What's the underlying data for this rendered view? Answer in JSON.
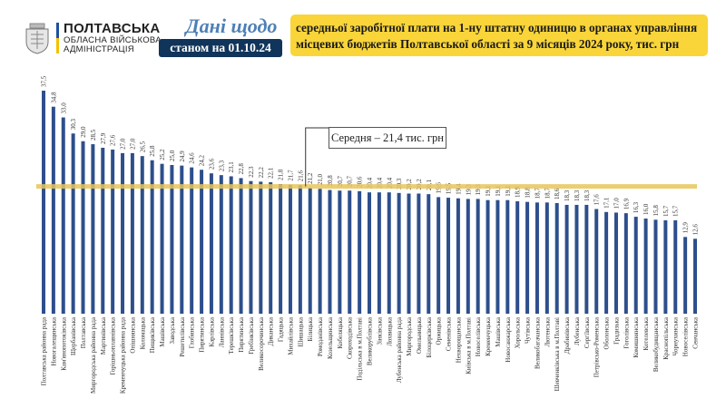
{
  "header": {
    "logo_line1": "ПОЛТАВСЬКА",
    "logo_line2": "ОБЛАСНА ВІЙСЬКОВА",
    "logo_line3": "АДМІНІСТРАЦІЯ",
    "title": "Дані щодо",
    "date": "станом на 01.10.24",
    "subtitle": "середньої заробітної плати на 1-ну штатну одиницю в органах управління місцевих бюджетів Полтавської області за 9 місяців 2024 року, тис. грн"
  },
  "colors": {
    "bar": "#2d4f8c",
    "average_line": "#e8c45a",
    "subtitle_bg": "#f9d53a",
    "date_bg": "#10345a",
    "title": "#4e7fb6"
  },
  "chart_data": {
    "type": "bar",
    "title": "середньої заробітної плати на 1-ну штатну одиницю в органах управління місцевих бюджетів Полтавської області за 9 місяців 2024 року, тис. грн",
    "xlabel": "",
    "ylabel": "",
    "ylim": [
      0,
      38
    ],
    "grid": false,
    "average": {
      "value": 21.4,
      "label": "Середня – 21,4 тис. грн"
    },
    "categories": [
      "Полтавська районна рада",
      "Новогалещинська",
      "Кам'янопотоківська",
      "Щербанівська",
      "Полтавська",
      "Миргородська районна рада",
      "Мартинівська",
      "Горішньоплавнівська",
      "Кременчуцька районна рада",
      "Опішнянська",
      "Коломацька",
      "Пищиківська",
      "Машівська",
      "Заводська",
      "Решетилівська",
      "Глобинська",
      "Пирятинська",
      "Карлівська",
      "Ланнівська",
      "Терешківська",
      "Пирятинська",
      "Гребінківська",
      "Великосорочинська",
      "Диканська",
      "Гадяцька",
      "Михайлівська",
      "Шишацька",
      "Білицька",
      "Ромоданівська",
      "Козельщинська",
      "Кобеляцька",
      "Скороходівська",
      "Подільська в м.Полтаві",
      "Великорублівська",
      "Зінківська",
      "Лохвицька",
      "Лубенська районна рада",
      "Миргородська",
      "Омельницька",
      "Білоцерківська",
      "Оржицька",
      "Семенівська",
      "Нехворощанська",
      "Київська в м.Полтаві",
      "Новоселівська",
      "Кременчуцька",
      "Машівська",
      "Новосанжарська",
      "Хорольська",
      "Чутівська",
      "Великобагачанська",
      "Лютенська",
      "Шевченківська в м.Полтаві",
      "Драбинівська",
      "Лубенська",
      "Сергіївська",
      "Петрівсько-Роменська",
      "Оболонська",
      "Градизька",
      "Гоголівська",
      "Комишнянська",
      "Котелевська",
      "Великобудищанська",
      "Краснопільська",
      "Чорнухинська",
      "Новоселівська",
      "Сенчанська"
    ],
    "values": [
      37.5,
      34.8,
      33.0,
      30.3,
      29.0,
      28.5,
      27.9,
      27.6,
      27.0,
      27.0,
      26.5,
      25.8,
      25.2,
      25.0,
      24.9,
      24.6,
      24.2,
      23.6,
      23.3,
      23.1,
      22.8,
      22.3,
      22.2,
      22.1,
      21.8,
      21.7,
      21.6,
      21.2,
      21.0,
      20.8,
      20.7,
      20.7,
      20.6,
      20.4,
      20.4,
      20.4,
      20.3,
      20.2,
      20.2,
      20.1,
      19.6,
      19.5,
      19.4,
      19.3,
      19.3,
      19.1,
      19.1,
      19.1,
      18.9,
      18.8,
      18.7,
      18.7,
      18.6,
      18.3,
      18.3,
      18.3,
      17.6,
      17.1,
      17.0,
      16.9,
      16.3,
      16.0,
      15.8,
      15.7,
      15.7,
      12.9,
      12.6
    ],
    "value_labels": [
      "37,5",
      "34,8",
      "33,0",
      "30,3",
      "29,0",
      "28,5",
      "27,9",
      "27,6",
      "27,0",
      "27,0",
      "26,5",
      "25,8",
      "25,2",
      "25,0",
      "24,9",
      "24,6",
      "24,2",
      "23,6",
      "23,3",
      "23,1",
      "22,8",
      "22,3",
      "22,2",
      "22,1",
      "21,8",
      "21,7",
      "21,6",
      "21,2",
      "21,0",
      "20,8",
      "20,7",
      "20,7",
      "20,6",
      "20,4",
      "20,4",
      "20,4",
      "20,3",
      "20,2",
      "20,2",
      "20,1",
      "19,6",
      "19,5",
      "19,4",
      "19,3",
      "19,3",
      "19,1",
      "19,1",
      "19,1",
      "18,9",
      "18,8",
      "18,7",
      "18,7",
      "18,6",
      "18,3",
      "18,3",
      "18,3",
      "17,6",
      "17,1",
      "17,0",
      "16,9",
      "16,3",
      "16,0",
      "15,8",
      "15,7",
      "15,7",
      "12,9",
      "12,6"
    ]
  }
}
